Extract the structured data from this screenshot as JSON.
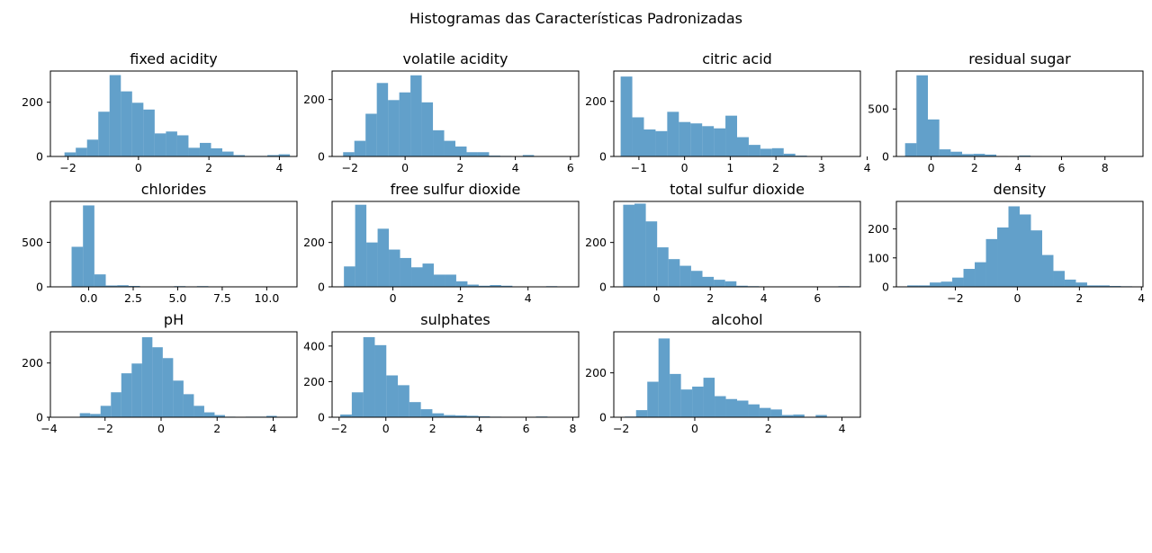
{
  "suptitle": "Histogramas das Características Padronizadas",
  "chart_data": [
    {
      "type": "bar",
      "title": "fixed acidity",
      "x_range": [
        -2.5,
        4.5
      ],
      "ylim": [
        0,
        315
      ],
      "bins": [
        -2.1,
        4.3
      ],
      "counts": [
        15,
        32,
        62,
        165,
        300,
        240,
        198,
        173,
        85,
        92,
        78,
        32,
        50,
        30,
        18,
        5,
        2,
        2,
        5,
        8
      ],
      "xticks": [
        -2,
        0,
        2,
        4
      ],
      "xtick_labels": [
        "−2",
        "0",
        "2",
        "4"
      ],
      "yticks": [
        0,
        200
      ],
      "ytick_labels": [
        "0",
        "200"
      ]
    },
    {
      "type": "bar",
      "title": "volatile acidity",
      "x_range": [
        -2.65,
        6.3
      ],
      "ylim": [
        0,
        300
      ],
      "bins": [
        -2.25,
        5.9
      ],
      "counts": [
        15,
        55,
        150,
        258,
        198,
        225,
        285,
        190,
        92,
        55,
        35,
        15,
        15,
        3,
        2,
        1,
        5,
        1,
        0,
        1
      ],
      "xticks": [
        -2,
        0,
        2,
        4,
        6
      ],
      "xtick_labels": [
        "−2",
        "0",
        "2",
        "4",
        "6"
      ],
      "yticks": [
        0,
        200
      ],
      "ytick_labels": [
        "0",
        "200"
      ]
    },
    {
      "type": "bar",
      "title": "citric acid",
      "x_range": [
        -1.55,
        3.85
      ],
      "ylim": [
        0,
        310
      ],
      "bins": [
        -1.4,
        3.7
      ],
      "counts": [
        290,
        142,
        98,
        92,
        162,
        125,
        120,
        110,
        102,
        148,
        70,
        42,
        28,
        30,
        10,
        3,
        0,
        0,
        0,
        1
      ],
      "xticks": [
        -1,
        0,
        1,
        2,
        3,
        4
      ],
      "xtick_labels": [
        "−1",
        "0",
        "1",
        "2",
        "3",
        "4"
      ],
      "yticks": [
        0,
        200
      ],
      "ytick_labels": [
        "0",
        "200"
      ]
    },
    {
      "type": "bar",
      "title": "residual sugar",
      "x_range": [
        -1.6,
        9.75
      ],
      "ylim": [
        0,
        900
      ],
      "bins": [
        -1.2,
        9.3
      ],
      "counts": [
        140,
        855,
        390,
        75,
        50,
        25,
        28,
        20,
        5,
        2,
        10,
        5,
        2,
        3,
        0,
        0,
        0,
        1,
        3,
        0
      ],
      "xticks": [
        0,
        2,
        4,
        6,
        8
      ],
      "xtick_labels": [
        "0",
        "2",
        "4",
        "6",
        "8"
      ],
      "yticks": [
        0,
        500
      ],
      "ytick_labels": [
        "0",
        "500"
      ]
    },
    {
      "type": "bar",
      "title": "chlorides",
      "x_range": [
        -2.15,
        11.7
      ],
      "ylim": [
        0,
        960
      ],
      "bins": [
        -1.6,
        11.2
      ],
      "counts": [
        5,
        450,
        915,
        140,
        15,
        18,
        10,
        5,
        2,
        2,
        8,
        2,
        8,
        3,
        2,
        0,
        0,
        0,
        2,
        2
      ],
      "xticks": [
        0,
        2.5,
        5,
        7.5,
        10
      ],
      "xtick_labels": [
        "0.0",
        "2.5",
        "5.0",
        "7.5",
        "10.0"
      ],
      "yticks": [
        0,
        500
      ],
      "ytick_labels": [
        "0",
        "500"
      ]
    },
    {
      "type": "bar",
      "title": "free sulfur dioxide",
      "x_range": [
        -1.8,
        5.5
      ],
      "ylim": [
        0,
        385
      ],
      "bins": [
        -1.45,
        5.2
      ],
      "counts": [
        92,
        370,
        200,
        262,
        168,
        130,
        88,
        105,
        55,
        55,
        25,
        10,
        5,
        8,
        5,
        2,
        2,
        1,
        3,
        1
      ],
      "xticks": [
        0,
        2,
        4
      ],
      "xtick_labels": [
        "0",
        "2",
        "4"
      ],
      "yticks": [
        0,
        200
      ],
      "ytick_labels": [
        "0",
        "200"
      ]
    },
    {
      "type": "bar",
      "title": "total sulfur dioxide",
      "x_range": [
        -1.6,
        7.6
      ],
      "ylim": [
        0,
        385
      ],
      "bins": [
        -1.25,
        7.2
      ],
      "counts": [
        370,
        375,
        295,
        178,
        125,
        95,
        72,
        45,
        32,
        25,
        5,
        3,
        2,
        1,
        0,
        0,
        0,
        0,
        0,
        3
      ],
      "xticks": [
        0,
        2,
        4,
        6
      ],
      "xtick_labels": [
        "0",
        "2",
        "4",
        "6"
      ],
      "yticks": [
        0,
        200
      ],
      "ytick_labels": [
        "0",
        "200"
      ]
    },
    {
      "type": "bar",
      "title": "density",
      "x_range": [
        -3.9,
        4.05
      ],
      "ylim": [
        0,
        295
      ],
      "bins": [
        -3.55,
        3.7
      ],
      "counts": [
        5,
        5,
        15,
        18,
        32,
        62,
        85,
        165,
        205,
        278,
        250,
        195,
        110,
        55,
        25,
        15,
        5,
        5,
        3,
        2
      ],
      "xticks": [
        -2,
        0,
        2,
        4
      ],
      "xtick_labels": [
        "−2",
        "0",
        "2",
        "4"
      ],
      "yticks": [
        0,
        100,
        200
      ],
      "ytick_labels": [
        "0",
        "100",
        "200"
      ]
    },
    {
      "type": "bar",
      "title": "pH",
      "x_range": [
        -3.95,
        4.85
      ],
      "ylim": [
        0,
        315
      ],
      "bins": [
        -2.9,
        4.5
      ],
      "counts": [
        15,
        12,
        42,
        92,
        162,
        198,
        295,
        258,
        218,
        135,
        85,
        42,
        18,
        8,
        2,
        0,
        2,
        2,
        5,
        1
      ],
      "xticks": [
        -4,
        -2,
        0,
        2,
        4
      ],
      "xtick_labels": [
        "−4",
        "−2",
        "0",
        "2",
        "4"
      ],
      "yticks": [
        0,
        200
      ],
      "ytick_labels": [
        "0",
        "200"
      ]
    },
    {
      "type": "bar",
      "title": "sulphates",
      "x_range": [
        -2.3,
        8.25
      ],
      "ylim": [
        0,
        480
      ],
      "bins": [
        -1.95,
        7.9
      ],
      "counts": [
        15,
        140,
        450,
        405,
        235,
        180,
        85,
        45,
        22,
        12,
        10,
        8,
        5,
        3,
        2,
        0,
        1,
        4,
        2,
        1
      ],
      "xticks": [
        -2,
        0,
        2,
        4,
        6,
        8
      ],
      "xtick_labels": [
        "−2",
        "0",
        "2",
        "4",
        "6",
        "8"
      ],
      "yticks": [
        0,
        200,
        400
      ],
      "ytick_labels": [
        "0",
        "200",
        "400"
      ]
    },
    {
      "type": "bar",
      "title": "alcohol",
      "x_range": [
        -2.2,
        4.5
      ],
      "ylim": [
        0,
        385
      ],
      "bins": [
        -1.9,
        4.2
      ],
      "counts": [
        3,
        32,
        160,
        355,
        195,
        125,
        138,
        178,
        95,
        82,
        75,
        58,
        42,
        35,
        10,
        12,
        2,
        10,
        2,
        1
      ],
      "xticks": [
        -2,
        0,
        2,
        4
      ],
      "xtick_labels": [
        "−2",
        "0",
        "2",
        "4"
      ],
      "yticks": [
        0,
        200
      ],
      "ytick_labels": [
        "0",
        "200"
      ]
    }
  ]
}
